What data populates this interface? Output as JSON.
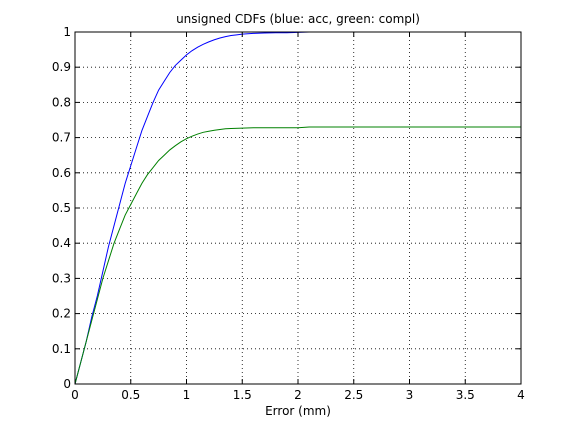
{
  "chart_data": {
    "type": "line",
    "title": "unsigned CDFs (blue: acc, green: compl)",
    "xlabel": "Error (mm)",
    "ylabel": "",
    "xlim": [
      0,
      4
    ],
    "ylim": [
      0,
      1
    ],
    "grid": true,
    "xticks": [
      0,
      0.5,
      1,
      1.5,
      2,
      2.5,
      3,
      3.5,
      4
    ],
    "xtick_labels": [
      "0",
      "0.5",
      "1",
      "1.5",
      "2",
      "2.5",
      "3",
      "3.5",
      "4"
    ],
    "yticks": [
      0,
      0.1,
      0.2,
      0.3,
      0.4,
      0.5,
      0.6,
      0.7,
      0.8,
      0.9,
      1
    ],
    "ytick_labels": [
      "0",
      "0.1",
      "0.2",
      "0.3",
      "0.4",
      "0.5",
      "0.6",
      "0.7",
      "0.8",
      "0.9",
      "1"
    ],
    "series": [
      {
        "color": "#0000ff",
        "x": [
          0,
          0.05,
          0.1,
          0.15,
          0.2,
          0.25,
          0.3,
          0.35,
          0.4,
          0.45,
          0.5,
          0.55,
          0.6,
          0.65,
          0.7,
          0.75,
          0.8,
          0.85,
          0.9,
          0.95,
          1,
          1.05,
          1.1,
          1.15,
          1.2,
          1.25,
          1.3,
          1.35,
          1.4,
          1.45,
          1.5,
          1.6,
          1.7,
          1.8,
          1.9,
          2,
          2.1,
          2.5,
          3,
          3.5,
          4
        ],
        "y": [
          0,
          0.06,
          0.12,
          0.19,
          0.25,
          0.32,
          0.39,
          0.45,
          0.51,
          0.57,
          0.62,
          0.67,
          0.72,
          0.76,
          0.8,
          0.835,
          0.86,
          0.885,
          0.905,
          0.92,
          0.935,
          0.947,
          0.957,
          0.965,
          0.972,
          0.978,
          0.983,
          0.987,
          0.99,
          0.992,
          0.994,
          0.996,
          0.997,
          0.998,
          0.998,
          0.999,
          1,
          1,
          1,
          1,
          1
        ]
      },
      {
        "color": "#008000",
        "x": [
          0,
          0.05,
          0.1,
          0.15,
          0.2,
          0.25,
          0.3,
          0.35,
          0.4,
          0.45,
          0.5,
          0.55,
          0.6,
          0.65,
          0.7,
          0.75,
          0.8,
          0.85,
          0.9,
          0.95,
          1,
          1.05,
          1.1,
          1.15,
          1.2,
          1.25,
          1.3,
          1.35,
          1.4,
          1.5,
          1.6,
          1.8,
          2,
          2.1,
          2.5,
          3,
          3.5,
          4
        ],
        "y": [
          0,
          0.06,
          0.12,
          0.18,
          0.24,
          0.3,
          0.35,
          0.4,
          0.44,
          0.48,
          0.51,
          0.54,
          0.57,
          0.595,
          0.615,
          0.635,
          0.65,
          0.665,
          0.677,
          0.688,
          0.697,
          0.704,
          0.71,
          0.715,
          0.718,
          0.721,
          0.723,
          0.725,
          0.726,
          0.727,
          0.728,
          0.728,
          0.728,
          0.73,
          0.73,
          0.73,
          0.73,
          0.73
        ]
      }
    ]
  }
}
